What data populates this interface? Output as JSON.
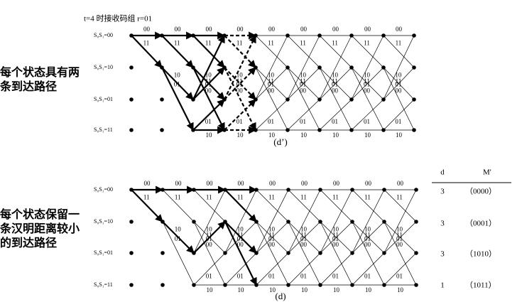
{
  "header": {
    "title": "t=4 时接收码组 r=01"
  },
  "states": [
    "S₀S₁=00",
    "S₀S₁=10",
    "S₀S₁=01",
    "S₀S₁=11"
  ],
  "branch_labels": [
    "00",
    "11",
    "10",
    "01",
    "11",
    "00",
    "01",
    "10"
  ],
  "panels": [
    {
      "note": "每个状态具有两条到达路径",
      "caption": "(d’)"
    },
    {
      "note": "每个状态保留一条汉明距离较小的到达路径",
      "caption": "(d)"
    }
  ],
  "table": {
    "headers": [
      "d",
      "M'"
    ],
    "rows": [
      [
        3,
        "（0000）"
      ],
      [
        3,
        "（0001）"
      ],
      [
        3,
        "（1010）"
      ],
      [
        1,
        "（1011）"
      ]
    ]
  }
}
